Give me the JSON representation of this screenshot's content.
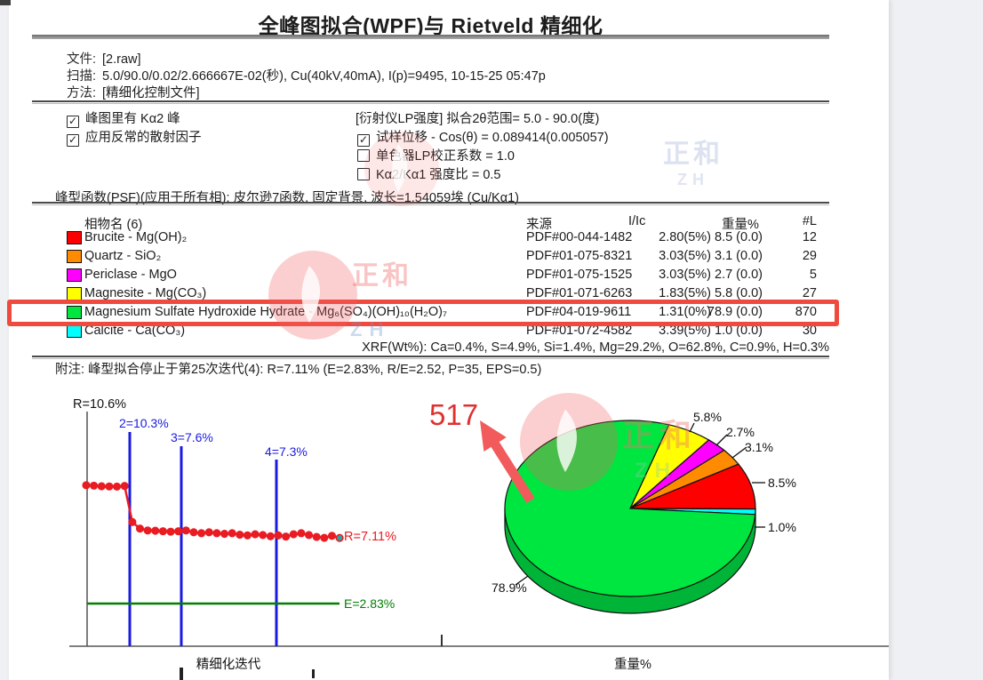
{
  "page": {
    "title": "全峰图拟合(WPF)与 Rietveld 精细化",
    "file_label": "文件:",
    "file_value": "[2.raw]",
    "scan_label": "扫描:",
    "scan_value": "5.0/90.0/0.02/2.666667E-02(秒), Cu(40kV,40mA), I(p)=9495, 10-15-25 05:47p",
    "method_label": "方法:",
    "method_value": "[精细化控制文件]"
  },
  "options": {
    "left": [
      {
        "checked": true,
        "label": "峰图里有 Kα2 峰"
      },
      {
        "checked": true,
        "label": "应用反常的散射因子"
      }
    ],
    "right_header": "[衍射仪LP强度] 拟合2θ范围= 5.0 - 90.0(度)",
    "right": [
      {
        "checked": true,
        "label": "试样位移 - Cos(θ) = 0.089414(0.005057)"
      },
      {
        "checked": false,
        "label": "单色器LP校正系数 = 1.0"
      },
      {
        "checked": false,
        "label": "Kα2/Kα1 强度比 = 0.5"
      }
    ]
  },
  "psf_line": "峰型函数(PSF)(应用于所有相): 皮尔逊7函数, 固定背景, 波长=1.54059埃 (Cu/Kα1)",
  "phase_table": {
    "headers": {
      "name": "相物名 (6)",
      "source": "来源",
      "iic": "I/Ic",
      "weight": "重量%",
      "lines": "#L"
    },
    "rows": [
      {
        "color": "#ff0000",
        "name": "Brucite - Mg(OH)₂",
        "source": "PDF#00-044-1482",
        "iic": "2.80(5%)",
        "weight": "8.5 (0.0)",
        "lines": "12",
        "highlight": false
      },
      {
        "color": "#ff8b00",
        "name": "Quartz - SiO₂",
        "source": "PDF#01-075-8321",
        "iic": "3.03(5%)",
        "weight": "3.1 (0.0)",
        "lines": "29",
        "highlight": false
      },
      {
        "color": "#ff00ff",
        "name": "Periclase - MgO",
        "source": "PDF#01-075-1525",
        "iic": "3.03(5%)",
        "weight": "2.7 (0.0)",
        "lines": "5",
        "highlight": false
      },
      {
        "color": "#ffff00",
        "name": "Magnesite - Mg(CO₃)",
        "source": "PDF#01-071-6263",
        "iic": "1.83(5%)",
        "weight": "5.8 (0.0)",
        "lines": "27",
        "highlight": false
      },
      {
        "color": "#00e640",
        "name": "Magnesium Sulfate Hydroxide Hydrate - Mg₆(SO₄)(OH)₁₀(H₂O)₇",
        "source": "PDF#04-019-9611",
        "iic": "1.31(0%)",
        "weight": "78.9 (0.0)",
        "lines": "870",
        "highlight": true
      },
      {
        "color": "#00ffff",
        "name": "Calcite - Ca(CO₃)",
        "source": "PDF#01-072-4582",
        "iic": "3.39(5%)",
        "weight": "1.0 (0.0)",
        "lines": "30",
        "highlight": false
      }
    ],
    "xrf_line": "XRF(Wt%): Ca=0.4%, S=4.9%, Si=1.4%, Mg=29.2%, O=62.8%, C=0.9%, H=0.3%"
  },
  "note_line": "附注: 峰型拟合停止于第25次迭代(4): R=7.11% (E=2.83%, R/E=2.52, P=35, EPS=0.5)",
  "annotation": {
    "text": "517",
    "color": "#e03030",
    "arrow_color": "#f15b5b"
  },
  "watermark": {
    "text": "正和",
    "subtext": "ZH"
  },
  "chart_data": [
    {
      "type": "line",
      "xlabel": "精细化迭代",
      "start_label": "R=10.6%",
      "end_label": "R=7.11%",
      "final_R_percent": 7.11,
      "error_line_label": "E=2.83%",
      "error_value": 2.83,
      "stage_markers": [
        {
          "label": "2=10.3%",
          "value": 10.3
        },
        {
          "label": "3=7.6%",
          "value": 7.6
        },
        {
          "label": "4=7.3%",
          "value": 7.3
        }
      ],
      "series": [
        {
          "name": "R%",
          "values": [
            10.55,
            10.52,
            10.48,
            10.47,
            10.46,
            10.5,
            8.15,
            7.72,
            7.6,
            7.58,
            7.55,
            7.52,
            7.55,
            7.6,
            7.48,
            7.42,
            7.48,
            7.42,
            7.38,
            7.42,
            7.32,
            7.28,
            7.35,
            7.3,
            7.22,
            7.28,
            7.2,
            7.35,
            7.42,
            7.3,
            7.18,
            7.12,
            7.25,
            7.11
          ]
        }
      ],
      "line_color": "#e81c22",
      "stage_color": "#1a1ae0",
      "error_color": "#008000",
      "grid": false
    },
    {
      "type": "pie",
      "xlabel": "重量%",
      "slices": [
        {
          "label": "5.8%",
          "value": 5.8,
          "color": "#ffff00",
          "phase": "Magnesite - Mg(CO₃)"
        },
        {
          "label": "2.7%",
          "value": 2.7,
          "color": "#ff00ff",
          "phase": "Periclase - MgO"
        },
        {
          "label": "3.1%",
          "value": 3.1,
          "color": "#ff8b00",
          "phase": "Quartz - SiO₂"
        },
        {
          "label": "8.5%",
          "value": 8.5,
          "color": "#ff0000",
          "phase": "Brucite - Mg(OH)₂"
        },
        {
          "label": "1.0%",
          "value": 1.0,
          "color": "#00ffff",
          "phase": "Calcite - Ca(CO₃)"
        },
        {
          "label": "78.9%",
          "value": 78.9,
          "color": "#00e640",
          "phase": "Magnesium Sulfate Hydroxide Hydrate - Mg₆(SO₄)(OH)₁₀(H₂O)₇"
        }
      ],
      "rim_color": "#00b437",
      "start_angle_deg": 72,
      "legend_position": "none"
    }
  ]
}
